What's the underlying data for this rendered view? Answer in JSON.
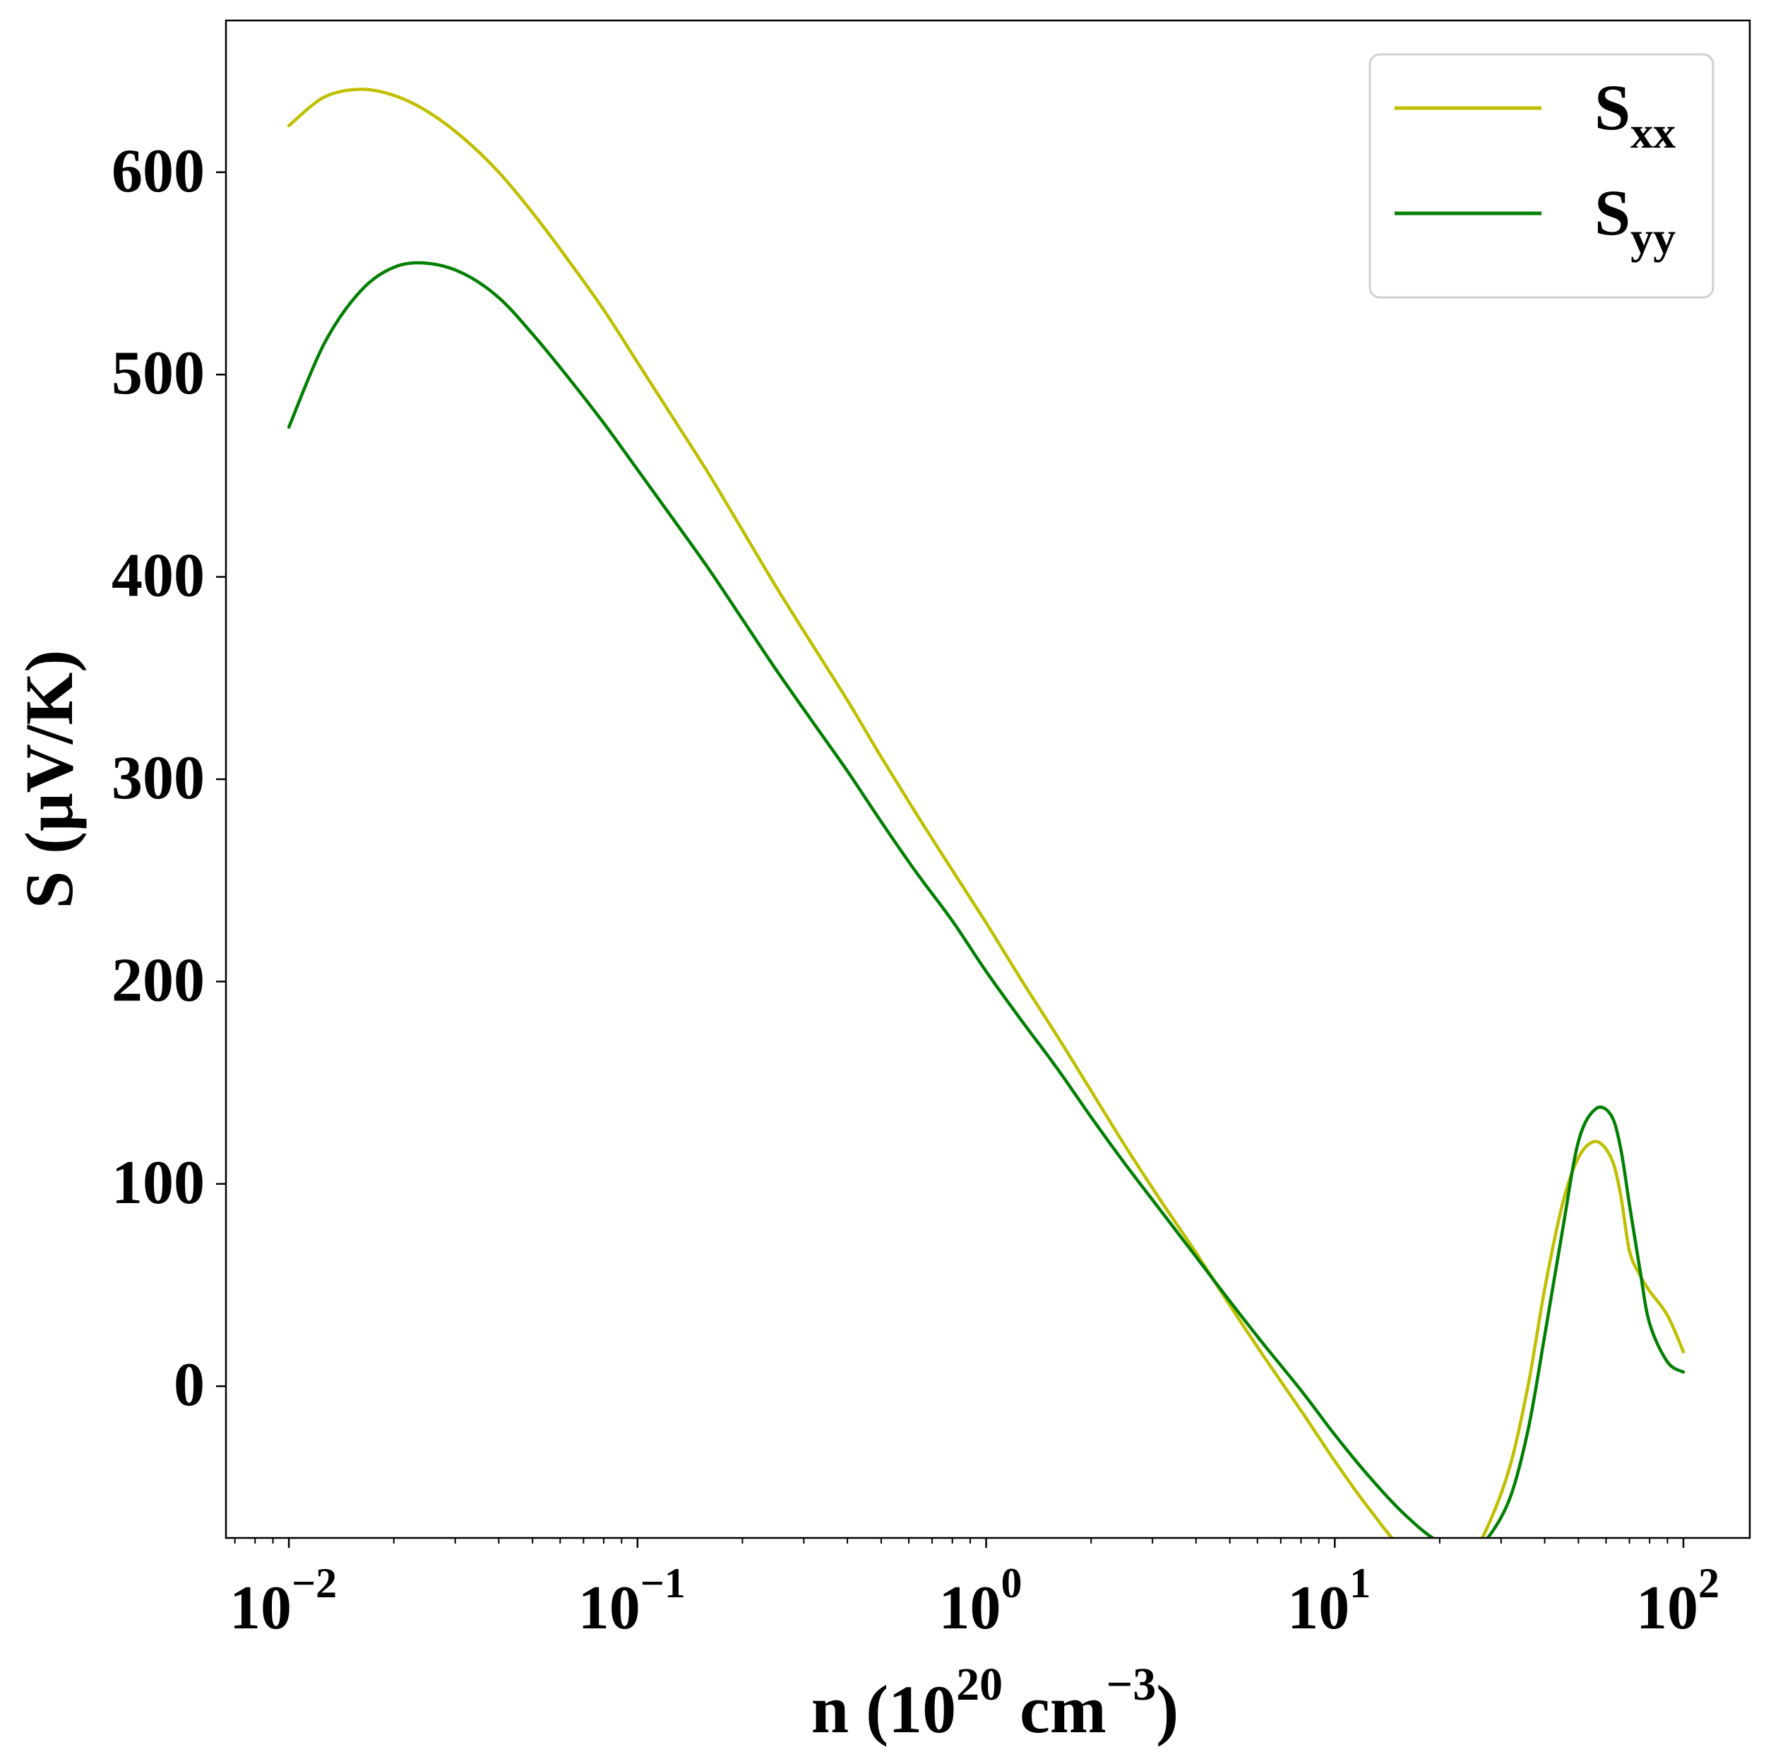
{
  "chart_data": {
    "type": "line",
    "xscale": "log",
    "xlim": [
      0.0066,
      155
    ],
    "ylim": [
      -75,
      675
    ],
    "xlabel": {
      "main": "n (10",
      "sup1": "20",
      "mid": " cm",
      "sup2": "−3",
      "end": ")"
    },
    "ylabel": "S (μV/K)",
    "xticks": [
      {
        "value": 0.01,
        "base": "10",
        "exp": "−2"
      },
      {
        "value": 0.1,
        "base": "10",
        "exp": "−1"
      },
      {
        "value": 1,
        "base": "10",
        "exp": "0"
      },
      {
        "value": 10,
        "base": "10",
        "exp": "1"
      },
      {
        "value": 100,
        "base": "10",
        "exp": "2"
      }
    ],
    "yticks": [
      {
        "value": 0,
        "label": "0"
      },
      {
        "value": 100,
        "label": "100"
      },
      {
        "value": 200,
        "label": "200"
      },
      {
        "value": 300,
        "label": "300"
      },
      {
        "value": 400,
        "label": "400"
      },
      {
        "value": 500,
        "label": "500"
      },
      {
        "value": 600,
        "label": "600"
      }
    ],
    "grid": false,
    "legend_position": "top-right",
    "series": [
      {
        "name": "S",
        "sub": "xx",
        "color": "#bfbf00",
        "x": [
          0.01,
          0.0126,
          0.016,
          0.02,
          0.025,
          0.0316,
          0.04,
          0.05,
          0.063,
          0.08,
          0.1,
          0.126,
          0.16,
          0.2,
          0.25,
          0.316,
          0.4,
          0.5,
          0.63,
          0.8,
          1,
          1.26,
          1.6,
          2,
          2.5,
          3.16,
          4,
          5,
          6.3,
          8,
          10,
          12.6,
          16,
          20,
          25,
          28,
          32,
          36,
          40,
          45,
          50,
          56,
          62,
          66,
          70,
          75,
          80,
          90,
          100
        ],
        "y": [
          623,
          637,
          641,
          638,
          630,
          617,
          600,
          580,
          557,
          532,
          506,
          479,
          451,
          423,
          395,
          367,
          339,
          311,
          283,
          255,
          229,
          201,
          173,
          146,
          119,
          92,
          66,
          40,
          14,
          -12,
          -37,
          -61,
          -82,
          -88,
          -80,
          -66,
          -38,
          2,
          48,
          90,
          113,
          121,
          113,
          95,
          67,
          55,
          47,
          35,
          17
        ]
      },
      {
        "name": "S",
        "sub": "yy",
        "color": "#007f00",
        "x": [
          0.01,
          0.0126,
          0.016,
          0.02,
          0.025,
          0.0316,
          0.04,
          0.05,
          0.063,
          0.08,
          0.1,
          0.126,
          0.16,
          0.2,
          0.25,
          0.316,
          0.4,
          0.5,
          0.63,
          0.8,
          1,
          1.26,
          1.6,
          2,
          2.5,
          3.16,
          4,
          5,
          6.3,
          8,
          10,
          12.6,
          16,
          20,
          25,
          28,
          32,
          36,
          40,
          45,
          50,
          56,
          62,
          66,
          70,
          75,
          80,
          90,
          100
        ],
        "y": [
          474,
          515,
          541,
          553,
          555,
          550,
          538,
          520,
          499,
          476,
          453,
          429,
          404,
          379,
          354,
          329,
          304,
          279,
          254,
          230,
          205,
          181,
          157,
          133,
          110,
          87,
          64,
          42,
          20,
          -2,
          -24,
          -45,
          -64,
          -77,
          -80,
          -73,
          -54,
          -20,
          25,
          77,
          121,
          137,
          134,
          118,
          90,
          58,
          31,
          12,
          7
        ]
      }
    ]
  }
}
